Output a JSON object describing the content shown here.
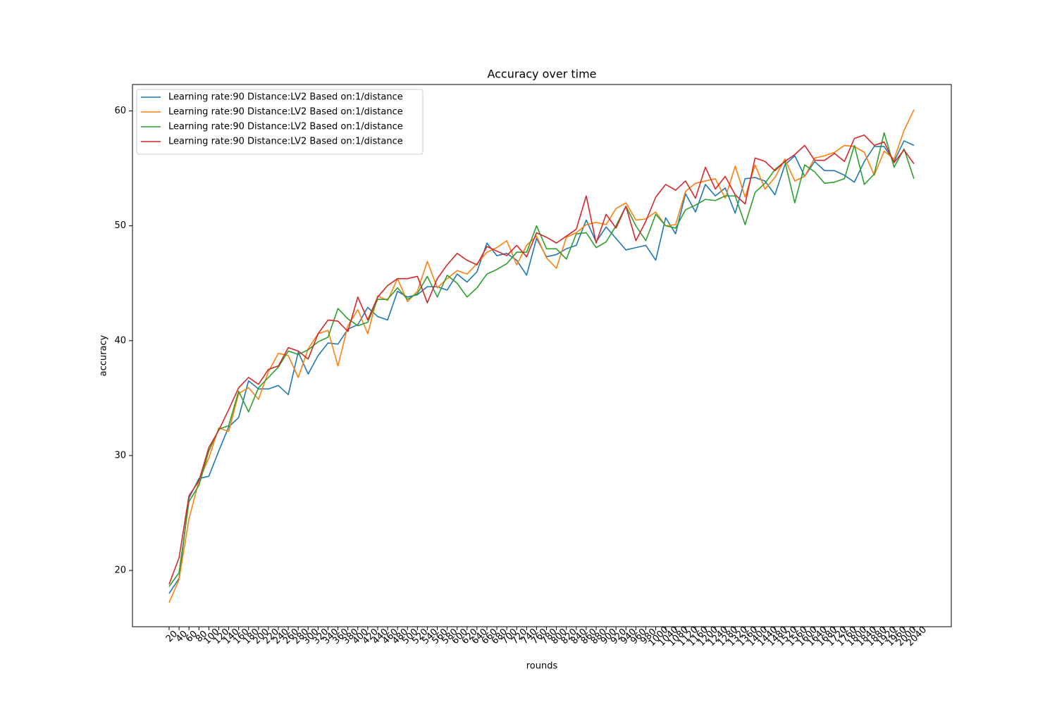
{
  "chart_data": {
    "type": "line",
    "title": "Accuracy over time",
    "x_label": "rounds",
    "y_label": "accuracy",
    "categories": [
      20,
      40,
      60,
      80,
      100,
      120,
      140,
      160,
      180,
      200,
      220,
      240,
      260,
      280,
      300,
      320,
      340,
      360,
      380,
      400,
      420,
      440,
      460,
      480,
      500,
      520,
      540,
      560,
      580,
      600,
      620,
      640,
      660,
      680,
      700,
      720,
      740,
      760,
      780,
      800,
      820,
      840,
      860,
      880,
      900,
      920,
      940,
      960,
      980,
      1000,
      1040,
      1080,
      1120,
      1160,
      1200,
      1240,
      1280,
      1320,
      1360,
      1400,
      1440,
      1480,
      1520,
      1560,
      1600,
      1640,
      1680,
      1720,
      1760,
      1800,
      1840,
      1880,
      1920,
      1960,
      2000,
      2040
    ],
    "series": [
      {
        "name": "Learning rate:90 Distance:LV2 Based on:1/distance",
        "color": "#1f77b4",
        "values": [
          18.0,
          19.3,
          26.3,
          28.0,
          28.2,
          30.4,
          32.5,
          33.3,
          36.5,
          35.8,
          35.8,
          36.1,
          35.3,
          39.0,
          37.1,
          38.7,
          39.8,
          39.7,
          41.0,
          41.4,
          42.9,
          42.1,
          41.8,
          44.3,
          43.8,
          44.0,
          44.7,
          44.7,
          44.4,
          45.8,
          45.1,
          46.0,
          48.5,
          47.4,
          47.6,
          47.0,
          45.7,
          48.9,
          47.3,
          47.5,
          48.0,
          48.3,
          50.5,
          48.6,
          49.9,
          48.9,
          47.9,
          48.1,
          48.3,
          47.0,
          50.7,
          49.3,
          52.8,
          51.2,
          53.6,
          52.6,
          53.3,
          51.1,
          54.1,
          54.2,
          53.9,
          52.7,
          55.3,
          56.1,
          54.3,
          55.6,
          54.8,
          54.8,
          54.4,
          53.8,
          55.6,
          56.9,
          56.9,
          55.6,
          57.4,
          57.0
        ]
      },
      {
        "name": "Learning rate:90 Distance:LV2 Based on:1/distance",
        "color": "#ff7f0e",
        "values": [
          17.2,
          19.2,
          24.5,
          27.8,
          29.8,
          32.4,
          32.1,
          35.4,
          35.9,
          34.9,
          37.3,
          38.9,
          38.7,
          36.8,
          39.3,
          40.6,
          40.9,
          37.8,
          41.3,
          42.7,
          40.6,
          43.9,
          43.5,
          45.4,
          43.4,
          44.3,
          46.9,
          44.6,
          45.4,
          46.1,
          45.8,
          46.7,
          47.7,
          48.1,
          48.7,
          46.6,
          48.3,
          49.1,
          47.2,
          46.3,
          49.0,
          49.4,
          50.1,
          50.3,
          50.1,
          51.5,
          52.0,
          50.5,
          50.6,
          51.2,
          50.0,
          50.1,
          53.0,
          53.7,
          53.9,
          54.1,
          52.4,
          55.2,
          52.5,
          55.3,
          53.2,
          54.2,
          55.8,
          53.9,
          54.3,
          55.9,
          56.1,
          56.4,
          57.0,
          56.9,
          56.4,
          54.4,
          56.5,
          55.8,
          58.3,
          60.1
        ]
      },
      {
        "name": "Learning rate:90 Distance:LV2 Based on:1/distance",
        "color": "#2ca02c",
        "values": [
          18.6,
          19.8,
          26.0,
          27.4,
          30.4,
          32.3,
          32.6,
          35.6,
          33.8,
          35.9,
          36.8,
          37.7,
          39.1,
          38.8,
          39.2,
          39.9,
          40.3,
          42.8,
          41.9,
          41.3,
          41.6,
          43.6,
          43.6,
          44.6,
          43.6,
          44.1,
          45.6,
          43.8,
          45.7,
          45.0,
          43.8,
          44.6,
          45.8,
          46.2,
          46.7,
          47.7,
          47.7,
          50.0,
          48.0,
          48.0,
          47.1,
          49.3,
          49.4,
          48.1,
          48.6,
          50.0,
          51.7,
          50.0,
          48.7,
          51.0,
          50.0,
          49.8,
          51.4,
          51.8,
          52.3,
          52.2,
          52.6,
          52.6,
          50.1,
          52.9,
          53.7,
          54.9,
          55.6,
          52.0,
          55.3,
          54.7,
          53.7,
          53.8,
          54.1,
          57.0,
          53.6,
          54.5,
          58.1,
          55.1,
          56.7,
          54.1
        ]
      },
      {
        "name": "Learning rate:90 Distance:LV2 Based on:1/distance",
        "color": "#d62728",
        "values": [
          18.8,
          21.1,
          26.5,
          27.8,
          30.7,
          32.2,
          34.0,
          35.9,
          36.8,
          36.2,
          37.5,
          37.8,
          39.4,
          39.1,
          38.4,
          40.6,
          41.8,
          41.7,
          40.8,
          43.8,
          41.8,
          43.8,
          44.8,
          45.4,
          45.4,
          45.6,
          43.3,
          45.4,
          46.6,
          47.6,
          47.0,
          46.6,
          48.2,
          47.8,
          47.4,
          48.3,
          47.3,
          49.4,
          49.0,
          48.5,
          49.1,
          49.7,
          52.6,
          48.5,
          51.0,
          49.8,
          51.7,
          48.7,
          50.4,
          52.5,
          53.6,
          53.1,
          53.9,
          52.4,
          55.1,
          53.2,
          54.3,
          52.7,
          51.9,
          55.9,
          55.6,
          54.8,
          55.6,
          56.2,
          57.0,
          55.7,
          55.7,
          56.3,
          55.6,
          57.6,
          57.9,
          57.0,
          57.3,
          55.5,
          56.6,
          55.4
        ]
      }
    ],
    "ylim": [
      15.1,
      62.3
    ],
    "yticks": [
      20,
      30,
      40,
      50,
      60
    ],
    "grid": false,
    "legend": "upper left"
  }
}
